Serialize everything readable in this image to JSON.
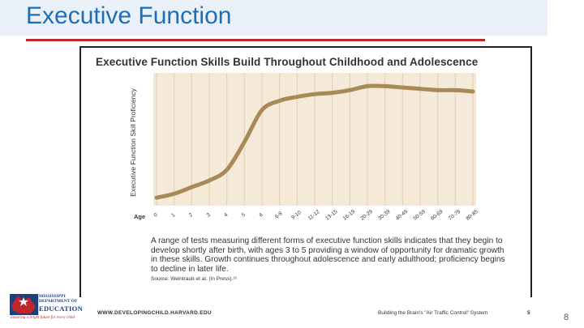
{
  "slide": {
    "title": "Executive Function",
    "slide_number": "8"
  },
  "figure": {
    "caption": "A range of tests measuring different forms of executive function skills indicates that they begin to develop shortly after birth, with ages 3 to 5 providing a window of opportunity for dramatic growth in these skills. Growth continues throughout adolescence and early adulthood; proficiency begins to decline in later life.",
    "source": "Source: Weintraub et al. (In Press).²³",
    "footer_url": "WWW.DEVELOPINGCHILD.HARVARD.EDU",
    "footer_series": "Building the Brain's \"Air Traffic Control\" System",
    "footer_page": "5"
  },
  "logo": {
    "line1": "MISSISSIPPI",
    "line2": "DEPARTMENT OF",
    "line3": "EDUCATION",
    "tagline": "Ensuring a bright future for every child"
  },
  "colors": {
    "title_blue": "#1f6db4",
    "title_rule_red": "#c0262d",
    "plot_background": "#f5ead9",
    "grid_line": "#e6d3b5",
    "curve": "#a88a56"
  },
  "chart_data": {
    "type": "line",
    "title": "Executive Function Skills Build Throughout Childhood and Adolescence",
    "xlabel": "Age",
    "ylabel": "Executive Function Skill Proficiency",
    "grid": true,
    "categories": [
      "0",
      "1",
      "2",
      "3",
      "4",
      "5",
      "6",
      "6-8",
      "9-10",
      "11-12",
      "13-15",
      "16-19",
      "20-29",
      "30-39",
      "40-49",
      "50-59",
      "60-69",
      "70-79",
      "80-85"
    ],
    "series": [
      {
        "values": [
          6,
          9,
          14,
          19,
          27,
          48,
          72,
          79,
          82,
          84,
          85,
          87,
          90,
          90,
          89,
          88,
          87,
          87,
          86
        ]
      }
    ],
    "ylim": [
      0,
      100
    ]
  }
}
